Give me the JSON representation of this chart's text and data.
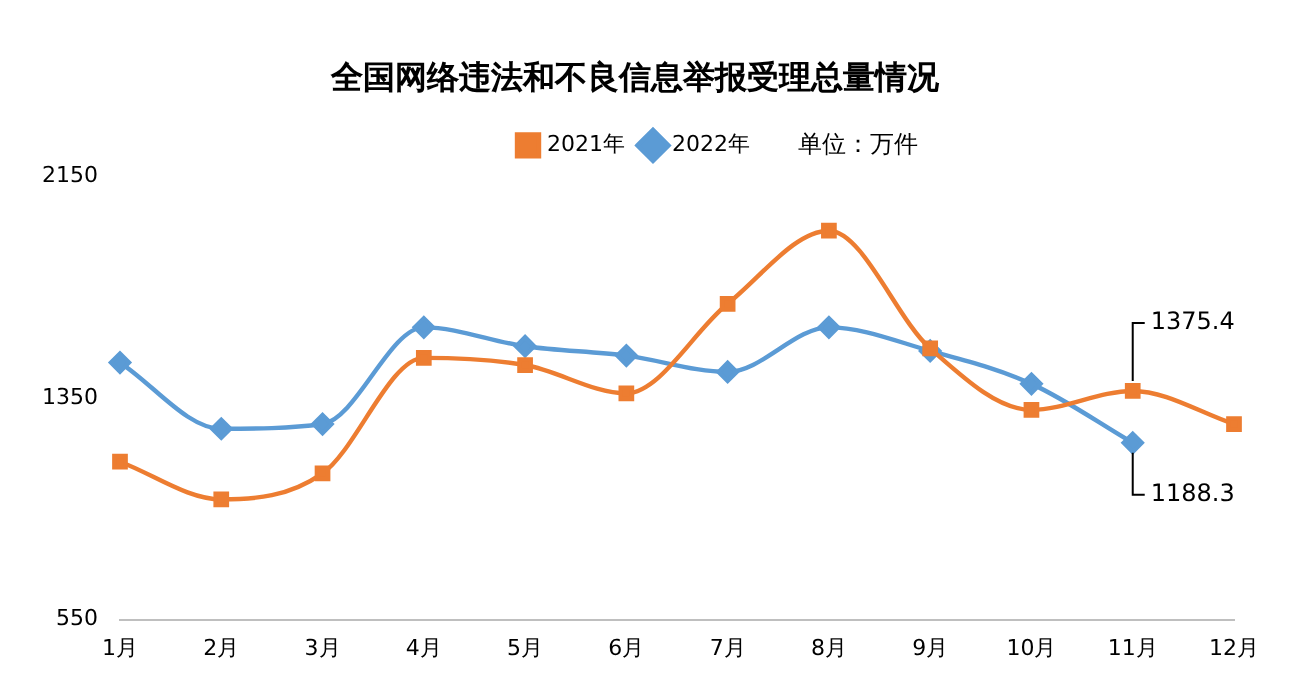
{
  "chart_data": {
    "type": "line",
    "title": "全国网络违法和不良信息举报受理总量情况",
    "categories": [
      "1月",
      "2月",
      "3月",
      "4月",
      "5月",
      "6月",
      "7月",
      "8月",
      "9月",
      "10月",
      "11月",
      "12月"
    ],
    "series": [
      {
        "name": "2021年",
        "color": "#ed7d31",
        "marker": "square",
        "values": [
          1120,
          984,
          1078,
          1495,
          1469,
          1367,
          1690,
          1954,
          1529,
          1307,
          1375.4,
          1256
        ]
      },
      {
        "name": "2022年",
        "color": "#5b9bd5",
        "marker": "diamond",
        "values": [
          1478,
          1239,
          1256,
          1605,
          1537,
          1503,
          1444,
          1605,
          1520,
          1401,
          1188.3,
          null
        ]
      }
    ],
    "ylim": [
      550,
      2150
    ],
    "yticks": [
      550,
      1350,
      2150
    ],
    "grid": false,
    "legend": "top",
    "annotations": [
      "单位：万件",
      {
        "text": "1375.4",
        "x": "11月",
        "y": 1375.4
      },
      {
        "text": "1188.3",
        "x": "11月",
        "y": 1188.3
      }
    ]
  }
}
